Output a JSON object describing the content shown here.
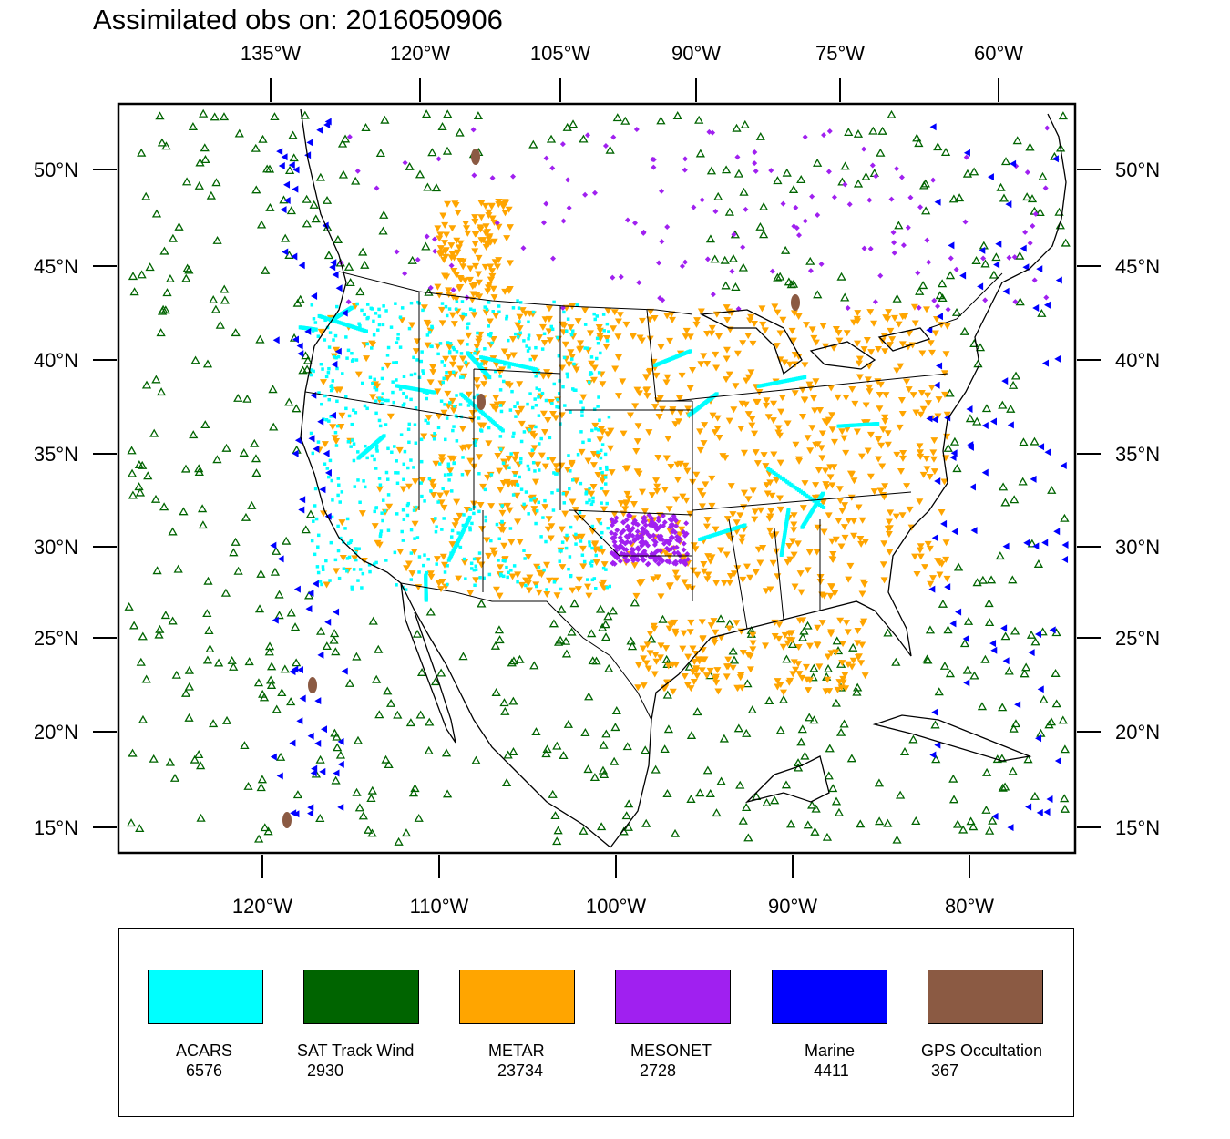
{
  "title": "Assimilated obs on: 2016050906",
  "map": {
    "top_lon_labels": [
      "135°W",
      "120°W",
      "105°W",
      "90°W",
      "75°W",
      "60°W"
    ],
    "bottom_lon_labels": [
      "120°W",
      "110°W",
      "100°W",
      "90°W",
      "80°W"
    ],
    "lat_labels": [
      "50°N",
      "45°N",
      "40°N",
      "35°N",
      "30°N",
      "25°N",
      "20°N",
      "15°N"
    ],
    "coastline_color": "#000000"
  },
  "legend": {
    "items": [
      {
        "name": "ACARS",
        "count": "6576",
        "color": "#00ffff"
      },
      {
        "name": "SAT Track Wind",
        "count": "2930",
        "color": "#006400"
      },
      {
        "name": "METAR",
        "count": "23734",
        "color": "#ffa500"
      },
      {
        "name": "MESONET",
        "count": "2728",
        "color": "#a020f0"
      },
      {
        "name": "Marine",
        "count": "4411",
        "color": "#0000ff"
      },
      {
        "name": "GPS Occultation",
        "count": "367",
        "color": "#8b5a43"
      }
    ]
  }
}
